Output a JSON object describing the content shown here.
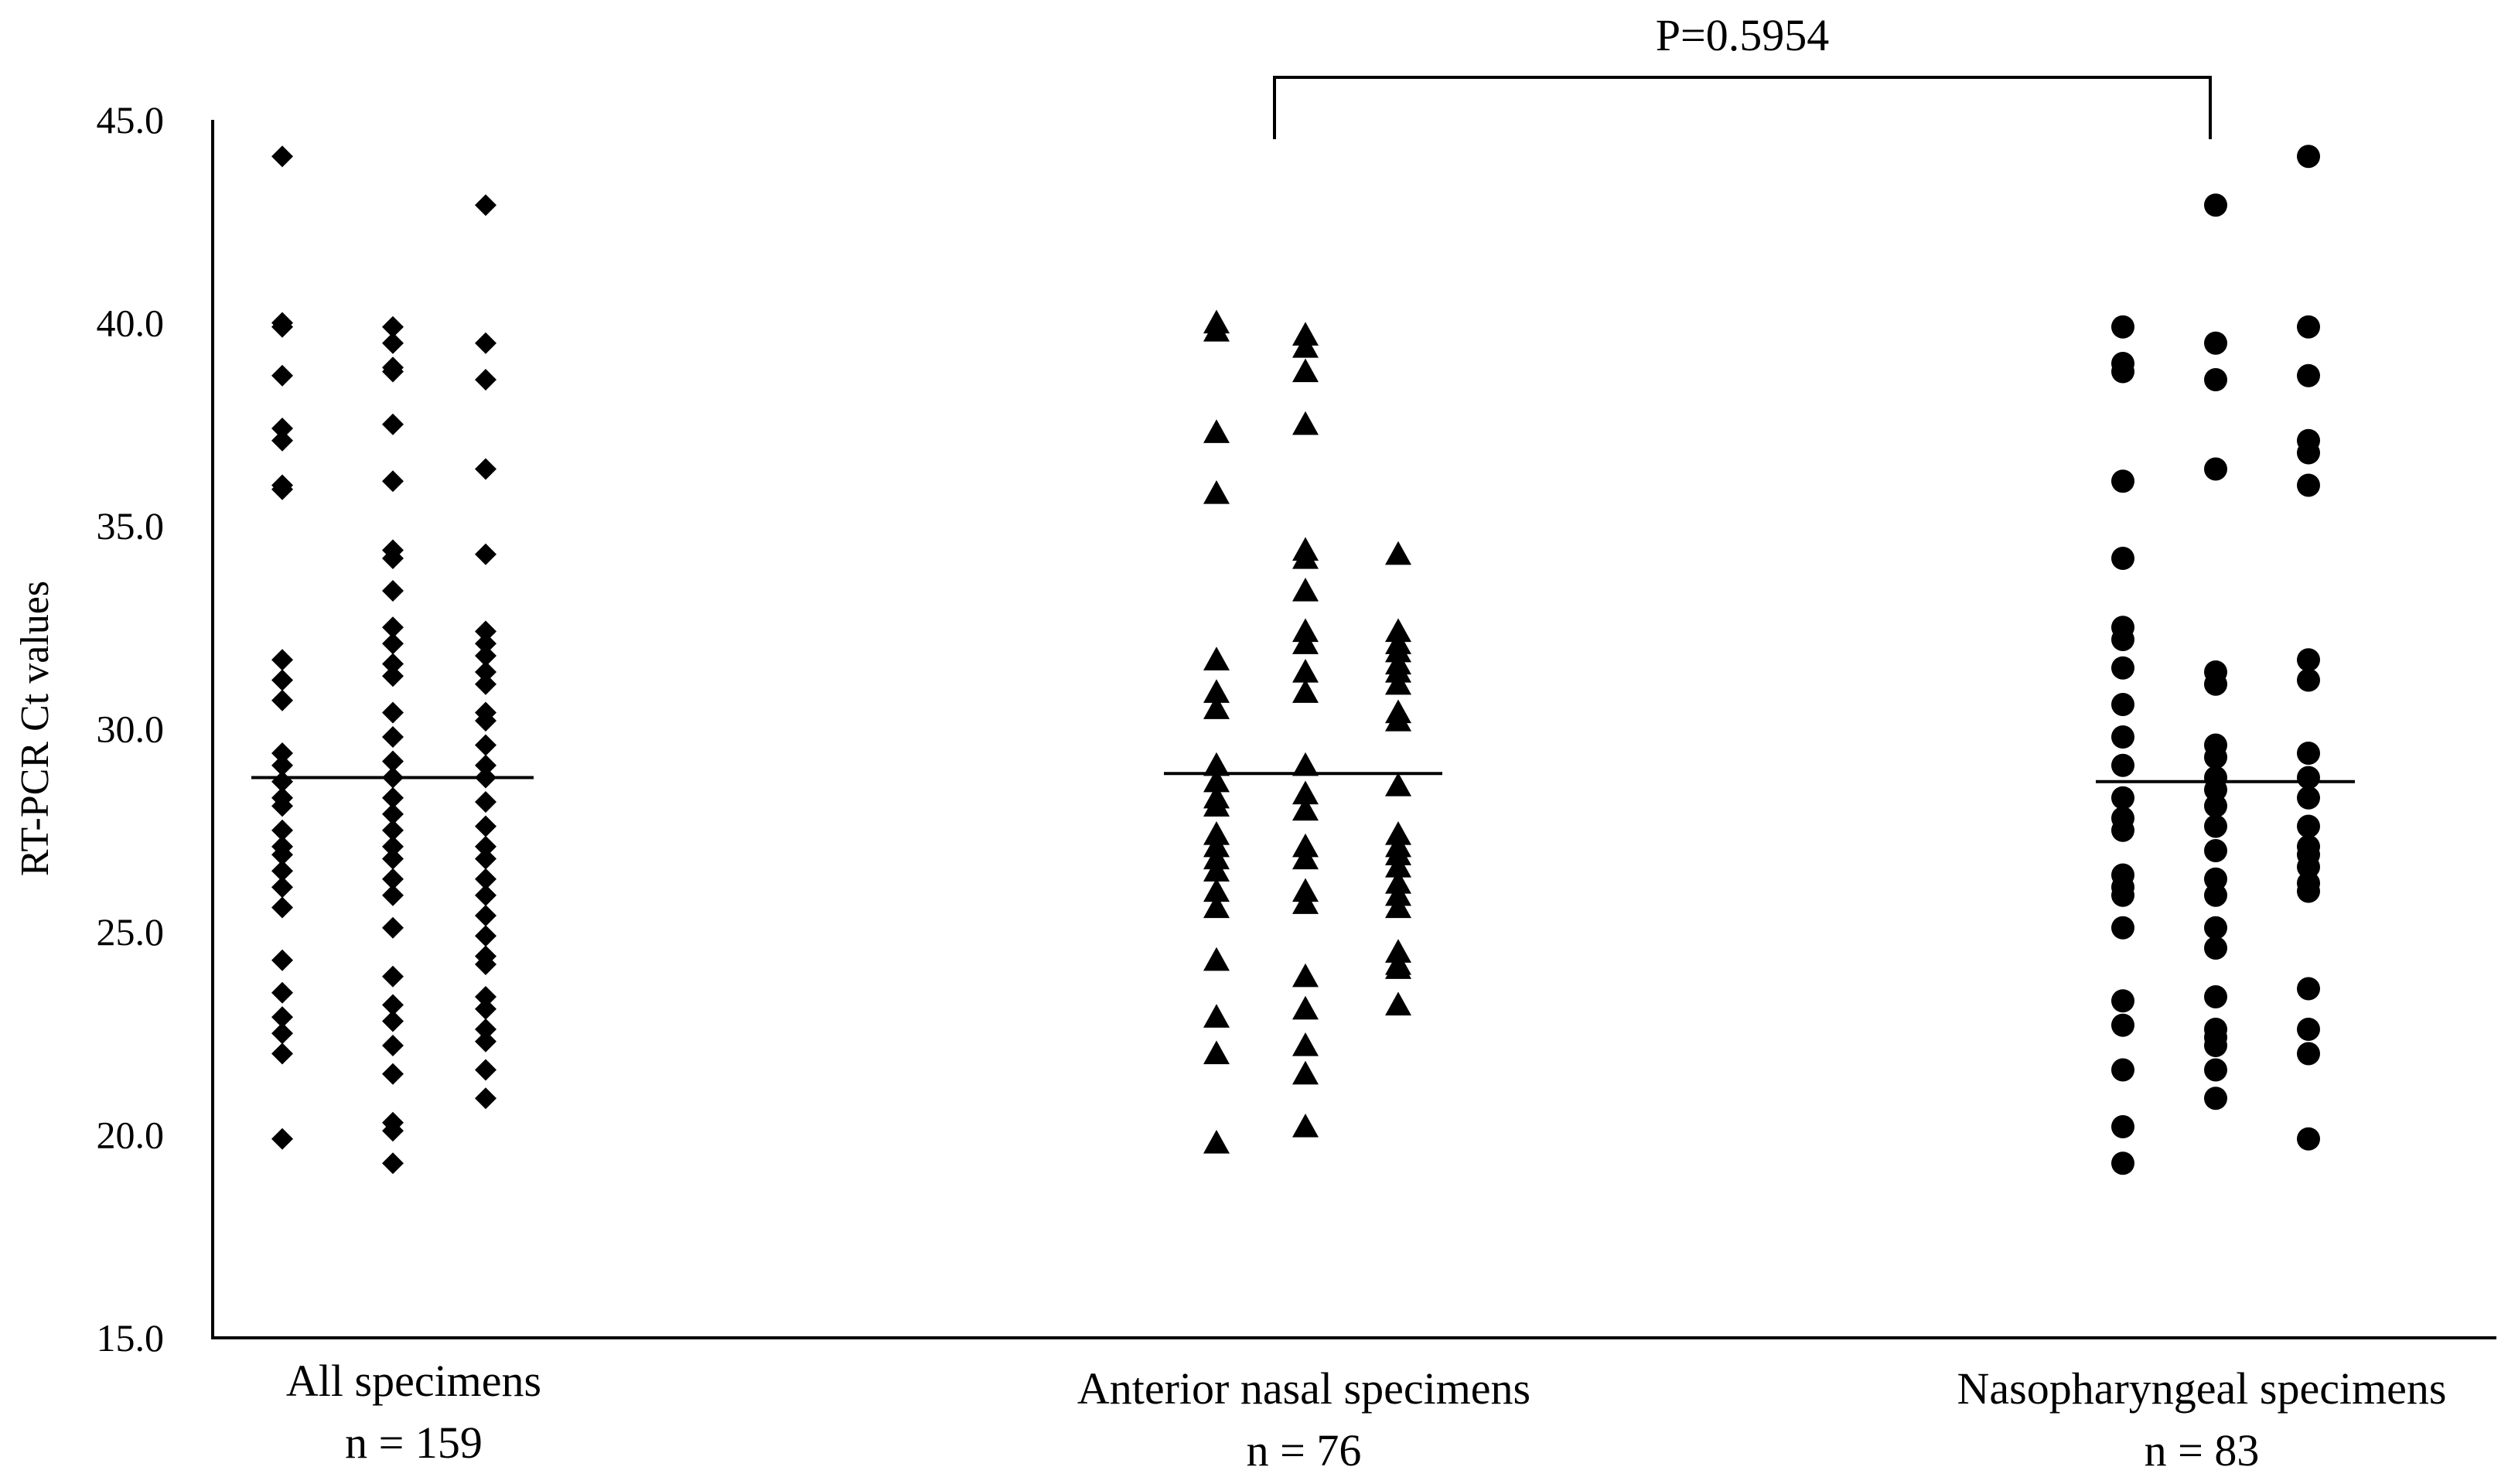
{
  "chart_data": {
    "type": "scatter",
    "ylabel": "RT-PCR Ct values",
    "ylim": [
      15,
      45
    ],
    "yticks": [
      "15.0",
      "20.0",
      "25.0",
      "30.0",
      "35.0",
      "40.0",
      "45.0"
    ],
    "ytick_values": [
      15,
      20,
      25,
      30,
      35,
      40,
      45
    ],
    "grid": false,
    "categories": [
      {
        "label": "All specimens",
        "n_label": "n = 159"
      },
      {
        "label": "Anterior nasal specimens",
        "n_label": "n = 76"
      },
      {
        "label": "Nasopharyngeal specimens",
        "n_label": "n = 83"
      }
    ],
    "series": [
      {
        "marker": "diamond",
        "median": 28.8,
        "columns": [
          [
            44.1,
            40.0,
            39.9,
            38.7,
            37.4,
            37.1,
            36.0,
            35.9,
            31.7,
            31.2,
            30.7,
            29.4,
            29.1,
            28.7,
            28.3,
            28.1,
            27.5,
            27.1,
            26.9,
            26.5,
            26.1,
            25.6,
            24.3,
            23.5,
            22.9,
            22.5,
            22.0,
            19.9
          ],
          [
            39.9,
            39.5,
            38.9,
            38.8,
            37.5,
            36.1,
            34.4,
            34.2,
            33.4,
            32.5,
            32.1,
            31.6,
            31.3,
            30.4,
            29.8,
            29.2,
            28.8,
            28.3,
            27.9,
            27.5,
            27.1,
            26.8,
            26.3,
            25.9,
            25.1,
            23.9,
            23.2,
            22.8,
            22.2,
            21.5,
            20.3,
            20.1,
            19.3
          ],
          [
            42.9,
            39.5,
            38.6,
            36.4,
            34.3,
            32.4,
            32.1,
            31.8,
            31.4,
            31.1,
            30.4,
            30.2,
            29.6,
            29.1,
            28.8,
            28.2,
            27.6,
            27.1,
            26.8,
            26.3,
            25.9,
            25.4,
            24.9,
            24.4,
            24.2,
            23.4,
            23.1,
            22.6,
            22.3,
            21.6,
            20.9
          ]
        ]
      },
      {
        "marker": "triangle",
        "median": 28.9,
        "columns": [
          [
            40.0,
            39.8,
            37.3,
            35.8,
            31.7,
            30.9,
            30.5,
            29.1,
            28.7,
            28.3,
            28.1,
            27.4,
            27.1,
            26.8,
            26.5,
            26.0,
            25.6,
            24.3,
            22.9,
            22.0,
            19.8
          ],
          [
            39.7,
            39.4,
            38.8,
            37.5,
            34.4,
            34.2,
            33.4,
            32.4,
            32.1,
            31.4,
            30.9,
            29.1,
            28.4,
            28.0,
            27.1,
            26.8,
            26.0,
            25.7,
            23.9,
            23.1,
            22.2,
            21.5,
            20.2
          ],
          [
            34.3,
            32.4,
            32.1,
            31.9,
            31.6,
            31.4,
            31.1,
            30.4,
            30.2,
            28.6,
            27.4,
            27.1,
            26.9,
            26.6,
            26.2,
            25.9,
            25.6,
            24.5,
            24.2,
            24.1,
            23.2
          ]
        ]
      },
      {
        "marker": "circle",
        "median": 28.7,
        "columns": [
          [
            39.9,
            39.0,
            38.8,
            36.1,
            34.2,
            32.5,
            32.2,
            31.5,
            30.6,
            29.8,
            29.1,
            28.3,
            27.8,
            27.5,
            26.4,
            26.1,
            25.9,
            25.1,
            23.3,
            22.7,
            21.6,
            20.2,
            19.3
          ],
          [
            42.9,
            39.5,
            38.6,
            36.4,
            31.4,
            31.1,
            29.6,
            29.3,
            28.8,
            28.5,
            28.1,
            27.6,
            27.0,
            26.3,
            25.9,
            25.1,
            24.6,
            23.4,
            22.6,
            22.4,
            22.2,
            21.6,
            20.9
          ],
          [
            44.1,
            39.9,
            38.7,
            37.1,
            36.8,
            36.0,
            31.7,
            31.2,
            29.4,
            28.8,
            28.3,
            27.6,
            27.1,
            26.9,
            26.6,
            26.2,
            26.0,
            23.6,
            22.6,
            22.0,
            19.9
          ]
        ]
      }
    ],
    "annotation": {
      "text": "P=0.5954",
      "between": [
        1,
        2
      ]
    }
  }
}
